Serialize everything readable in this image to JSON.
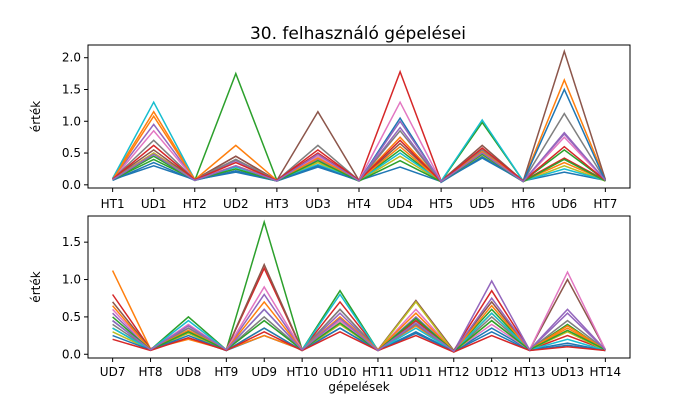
{
  "title": "30. felhasználó gépelései",
  "chart_data": [
    {
      "type": "line",
      "title": "30. felhasználó gépelései",
      "xlabel": "",
      "ylabel": "érték",
      "categories": [
        "HT1",
        "UD1",
        "HT2",
        "UD2",
        "HT3",
        "UD3",
        "HT4",
        "UD4",
        "HT5",
        "UD5",
        "HT6",
        "UD6",
        "HT7"
      ],
      "yticks": [
        0.0,
        0.5,
        1.0,
        1.5,
        2.0
      ],
      "ytick_labels": [
        "0.0",
        "0.5",
        "1.0",
        "1.5",
        "2.0"
      ],
      "ylim": [
        -0.05,
        2.2
      ],
      "grid": false,
      "colors": [
        "#1f77b4",
        "#ff7f0e",
        "#2ca02c",
        "#d62728",
        "#9467bd",
        "#8c564b",
        "#e377c2",
        "#7f7f7f",
        "#bcbd22",
        "#17becf"
      ],
      "series": [
        {
          "values": [
            0.08,
            0.3,
            0.08,
            0.2,
            0.06,
            0.28,
            0.07,
            0.28,
            0.05,
            0.42,
            0.06,
            0.2,
            0.07
          ]
        },
        {
          "values": [
            0.1,
            1.15,
            0.09,
            0.3,
            0.08,
            0.35,
            0.07,
            0.75,
            0.05,
            0.5,
            0.06,
            1.65,
            0.08
          ]
        },
        {
          "values": [
            0.08,
            0.45,
            0.07,
            1.75,
            0.07,
            0.45,
            0.07,
            0.55,
            0.05,
            0.98,
            0.06,
            0.55,
            0.07
          ]
        },
        {
          "values": [
            0.09,
            0.5,
            0.08,
            0.45,
            0.07,
            0.5,
            0.07,
            1.78,
            0.06,
            0.55,
            0.06,
            0.42,
            0.07
          ]
        },
        {
          "values": [
            0.09,
            0.95,
            0.08,
            0.38,
            0.07,
            0.4,
            0.07,
            0.9,
            0.05,
            0.48,
            0.06,
            0.8,
            0.07
          ]
        },
        {
          "values": [
            0.1,
            0.55,
            0.08,
            0.45,
            0.07,
            1.15,
            0.07,
            0.65,
            0.06,
            0.62,
            0.06,
            2.1,
            0.08
          ]
        },
        {
          "values": [
            0.08,
            0.85,
            0.08,
            0.3,
            0.06,
            0.45,
            0.07,
            1.3,
            0.05,
            0.5,
            0.06,
            0.75,
            0.07
          ]
        },
        {
          "values": [
            0.09,
            0.7,
            0.08,
            0.4,
            0.07,
            0.62,
            0.07,
            0.85,
            0.05,
            0.55,
            0.06,
            1.12,
            0.07
          ]
        },
        {
          "values": [
            0.08,
            0.5,
            0.07,
            0.25,
            0.06,
            0.35,
            0.06,
            0.45,
            0.05,
            0.45,
            0.05,
            0.3,
            0.06
          ]
        },
        {
          "values": [
            0.1,
            1.3,
            0.08,
            0.28,
            0.07,
            0.32,
            0.07,
            0.5,
            0.06,
            1.02,
            0.06,
            0.25,
            0.07
          ]
        },
        {
          "values": [
            0.07,
            0.35,
            0.07,
            0.22,
            0.06,
            0.3,
            0.06,
            1.05,
            0.04,
            0.44,
            0.05,
            1.5,
            0.06
          ]
        },
        {
          "values": [
            0.08,
            1.08,
            0.08,
            0.62,
            0.07,
            0.42,
            0.07,
            0.6,
            0.05,
            0.52,
            0.06,
            0.35,
            0.07
          ]
        },
        {
          "values": [
            0.08,
            0.4,
            0.08,
            0.25,
            0.06,
            0.38,
            0.06,
            0.38,
            0.05,
            0.48,
            0.05,
            0.4,
            0.06
          ]
        },
        {
          "values": [
            0.09,
            0.62,
            0.08,
            0.35,
            0.07,
            0.55,
            0.07,
            0.7,
            0.05,
            0.58,
            0.06,
            0.6,
            0.07
          ]
        },
        {
          "values": [
            0.08,
            0.48,
            0.07,
            0.3,
            0.06,
            0.48,
            0.06,
            1.0,
            0.05,
            0.5,
            0.05,
            0.82,
            0.07
          ]
        }
      ]
    },
    {
      "type": "line",
      "title": "",
      "xlabel": "gépelések",
      "ylabel": "érték",
      "categories": [
        "UD7",
        "HT8",
        "UD8",
        "HT9",
        "UD9",
        "HT10",
        "UD10",
        "HT11",
        "UD11",
        "HT12",
        "UD12",
        "HT13",
        "UD13",
        "HT14"
      ],
      "yticks": [
        0.0,
        0.5,
        1.0,
        1.5
      ],
      "ytick_labels": [
        "0.0",
        "0.5",
        "1.0",
        "1.5"
      ],
      "ylim": [
        -0.05,
        1.85
      ],
      "grid": false,
      "colors": [
        "#1f77b4",
        "#ff7f0e",
        "#2ca02c",
        "#d62728",
        "#9467bd",
        "#8c564b",
        "#e377c2",
        "#7f7f7f",
        "#bcbd22",
        "#17becf"
      ],
      "series": [
        {
          "values": [
            0.45,
            0.06,
            0.22,
            0.05,
            0.25,
            0.06,
            0.35,
            0.05,
            0.3,
            0.04,
            0.35,
            0.06,
            0.15,
            0.05
          ]
        },
        {
          "values": [
            1.12,
            0.07,
            0.2,
            0.06,
            0.25,
            0.06,
            0.45,
            0.06,
            0.38,
            0.04,
            0.55,
            0.06,
            0.35,
            0.06
          ]
        },
        {
          "values": [
            0.35,
            0.06,
            0.5,
            0.06,
            1.77,
            0.06,
            0.85,
            0.05,
            0.45,
            0.05,
            0.6,
            0.06,
            0.4,
            0.05
          ]
        },
        {
          "values": [
            0.8,
            0.07,
            0.35,
            0.06,
            1.15,
            0.06,
            0.7,
            0.06,
            0.45,
            0.05,
            0.85,
            0.06,
            0.25,
            0.06
          ]
        },
        {
          "values": [
            0.55,
            0.06,
            0.35,
            0.06,
            0.8,
            0.06,
            0.55,
            0.05,
            0.5,
            0.04,
            0.98,
            0.06,
            0.55,
            0.06
          ]
        },
        {
          "values": [
            0.7,
            0.07,
            0.3,
            0.06,
            1.2,
            0.06,
            0.6,
            0.06,
            0.72,
            0.05,
            0.7,
            0.06,
            1.0,
            0.06
          ]
        },
        {
          "values": [
            0.6,
            0.06,
            0.4,
            0.06,
            0.9,
            0.06,
            0.45,
            0.05,
            0.6,
            0.04,
            0.4,
            0.06,
            1.1,
            0.06
          ]
        },
        {
          "values": [
            0.4,
            0.06,
            0.35,
            0.06,
            0.5,
            0.06,
            0.6,
            0.05,
            0.4,
            0.04,
            0.5,
            0.06,
            0.45,
            0.06
          ]
        },
        {
          "values": [
            0.3,
            0.06,
            0.28,
            0.05,
            0.35,
            0.05,
            0.4,
            0.05,
            0.7,
            0.03,
            0.45,
            0.06,
            0.3,
            0.05
          ]
        },
        {
          "values": [
            0.35,
            0.06,
            0.45,
            0.06,
            0.6,
            0.06,
            0.8,
            0.05,
            0.35,
            0.04,
            0.55,
            0.06,
            0.2,
            0.05
          ]
        },
        {
          "values": [
            0.25,
            0.06,
            0.25,
            0.05,
            0.35,
            0.05,
            0.35,
            0.05,
            0.28,
            0.04,
            0.3,
            0.05,
            0.12,
            0.05
          ]
        },
        {
          "values": [
            0.65,
            0.06,
            0.32,
            0.06,
            0.7,
            0.06,
            0.5,
            0.06,
            0.55,
            0.04,
            0.65,
            0.06,
            0.38,
            0.06
          ]
        },
        {
          "values": [
            0.5,
            0.06,
            0.3,
            0.06,
            0.45,
            0.06,
            0.42,
            0.05,
            0.48,
            0.04,
            0.45,
            0.06,
            0.32,
            0.06
          ]
        },
        {
          "values": [
            0.2,
            0.05,
            0.22,
            0.05,
            0.3,
            0.05,
            0.3,
            0.05,
            0.25,
            0.03,
            0.25,
            0.05,
            0.1,
            0.05
          ]
        },
        {
          "values": [
            0.45,
            0.06,
            0.38,
            0.06,
            0.6,
            0.06,
            0.48,
            0.05,
            0.42,
            0.04,
            0.75,
            0.06,
            0.6,
            0.06
          ]
        }
      ]
    }
  ]
}
